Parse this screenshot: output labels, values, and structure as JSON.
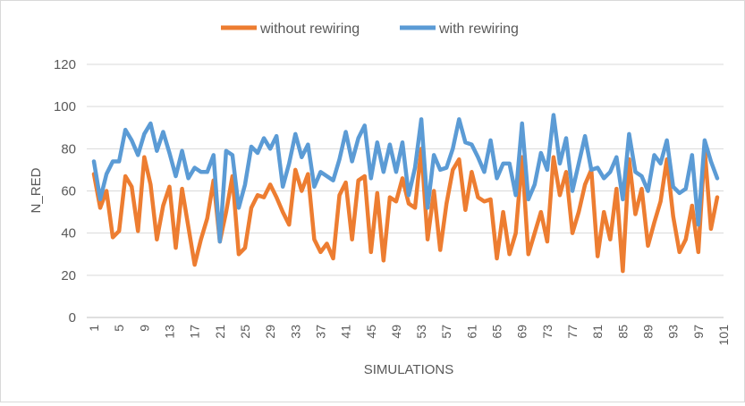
{
  "chart_data": {
    "type": "line",
    "title": "",
    "xlabel": "SIMULATIONS",
    "ylabel": "N_RED",
    "ylim": [
      0,
      120
    ],
    "yticks": [
      0,
      20,
      40,
      60,
      80,
      100,
      120
    ],
    "xlim": [
      1,
      101
    ],
    "xticks": [
      1,
      5,
      9,
      13,
      17,
      21,
      25,
      29,
      33,
      37,
      41,
      45,
      49,
      53,
      57,
      61,
      65,
      69,
      73,
      77,
      81,
      85,
      89,
      93,
      97,
      101
    ],
    "grid": true,
    "legend_position": "top",
    "series": [
      {
        "name": "without rewiring",
        "color": "#ED7D31",
        "values": [
          68,
          52,
          60,
          38,
          41,
          67,
          62,
          41,
          76,
          63,
          37,
          53,
          62,
          33,
          61,
          43,
          25,
          37,
          47,
          65,
          36,
          50,
          67,
          30,
          33,
          52,
          58,
          57,
          63,
          57,
          50,
          44,
          70,
          60,
          68,
          37,
          31,
          35,
          28,
          58,
          64,
          37,
          65,
          67,
          31,
          59,
          27,
          57,
          55,
          66,
          54,
          52,
          80,
          37,
          60,
          32,
          54,
          70,
          75,
          51,
          69,
          57,
          55,
          56,
          28,
          50,
          30,
          40,
          76,
          30,
          40,
          50,
          36,
          76,
          58,
          69,
          40,
          50,
          63,
          70,
          29,
          50,
          37,
          61,
          22,
          75,
          49,
          61,
          34,
          45,
          55,
          75,
          48,
          31,
          37,
          53,
          31,
          80,
          42,
          57
        ]
      },
      {
        "name": "with rewiring",
        "color": "#5B9BD5",
        "values": [
          74,
          56,
          68,
          74,
          74,
          89,
          84,
          77,
          87,
          92,
          79,
          88,
          78,
          67,
          79,
          66,
          71,
          69,
          69,
          77,
          36,
          79,
          77,
          52,
          63,
          81,
          78,
          85,
          80,
          86,
          62,
          73,
          87,
          76,
          82,
          62,
          69,
          67,
          65,
          75,
          88,
          74,
          85,
          91,
          66,
          83,
          69,
          82,
          69,
          83,
          58,
          71,
          94,
          52,
          77,
          70,
          71,
          80,
          94,
          83,
          82,
          76,
          69,
          84,
          66,
          73,
          73,
          58,
          92,
          56,
          63,
          78,
          70,
          96,
          73,
          85,
          60,
          73,
          86,
          70,
          71,
          66,
          69,
          76,
          56,
          87,
          69,
          67,
          60,
          77,
          73,
          84,
          62,
          59,
          61,
          77,
          44,
          84,
          74,
          66
        ]
      }
    ]
  }
}
